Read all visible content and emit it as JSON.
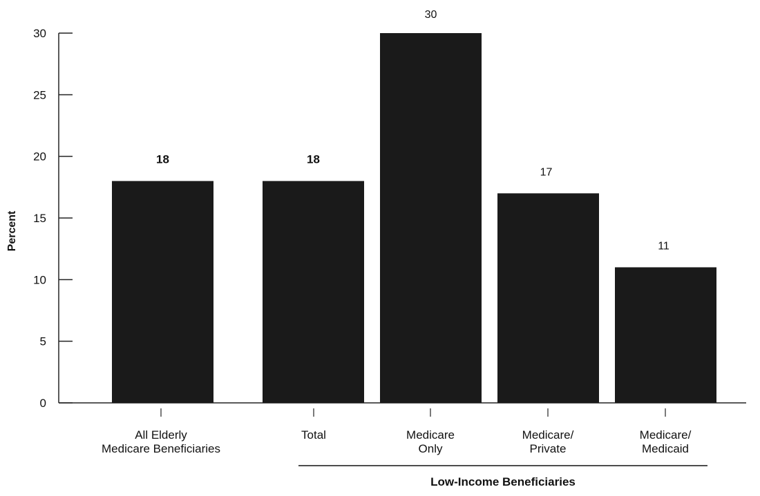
{
  "chart_data": {
    "type": "bar",
    "categories": [
      [
        "All Elderly",
        "Medicare Beneficiaries"
      ],
      [
        "Total"
      ],
      [
        "Medicare",
        "Only"
      ],
      [
        "Medicare/",
        "Private"
      ],
      [
        "Medicare/",
        "Medicaid"
      ]
    ],
    "values": [
      18,
      18,
      30,
      17,
      11
    ],
    "data_labels": [
      "18",
      "18",
      "30",
      "17",
      "11"
    ],
    "ylabel": "Percent",
    "xlabel": "",
    "ylim": [
      0,
      30
    ],
    "yticks": [
      0,
      5,
      10,
      15,
      20,
      25,
      30
    ],
    "group_label": "Low-Income Beneficiaries",
    "group_members": [
      1,
      2,
      3,
      4
    ],
    "grid": false,
    "bar_color": "#1a1a1a",
    "axis_color": "#222222"
  }
}
